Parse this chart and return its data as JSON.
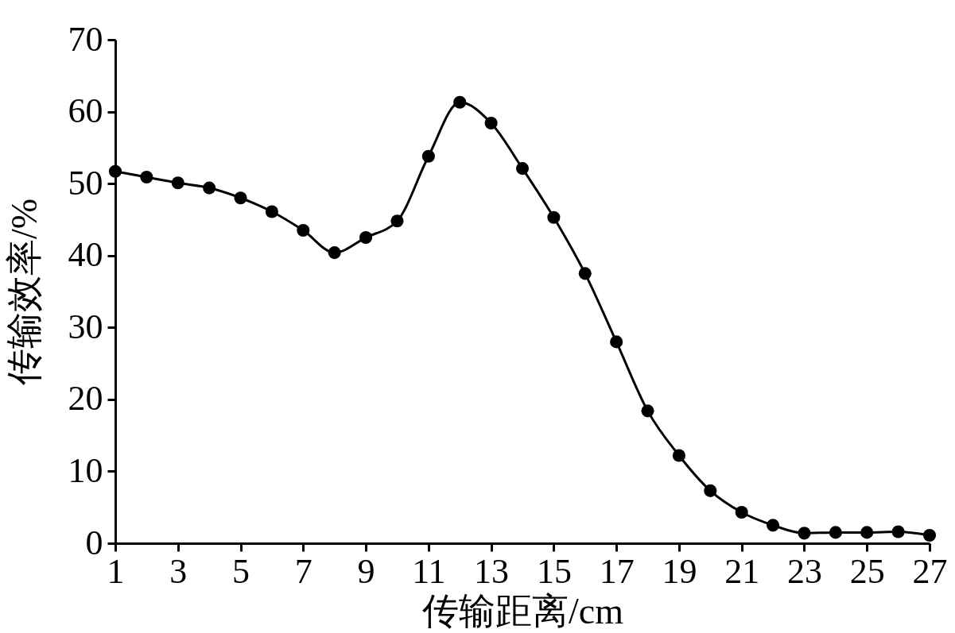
{
  "chart_data": {
    "type": "line",
    "xlabel": "传输距离/cm",
    "ylabel": "传输效率/%",
    "x": [
      1,
      2,
      3,
      4,
      5,
      6,
      7,
      8,
      9,
      10,
      11,
      12,
      13,
      14,
      15,
      16,
      17,
      18,
      19,
      20,
      21,
      22,
      23,
      24,
      25,
      26,
      27
    ],
    "series": [
      {
        "color": "#000000",
        "values": [
          51.7,
          50.9,
          50.1,
          49.4,
          48.0,
          46.1,
          43.5,
          40.4,
          42.5,
          44.8,
          53.8,
          61.3,
          58.4,
          52.1,
          45.3,
          37.5,
          28.0,
          18.4,
          12.2,
          7.3,
          4.3,
          2.5,
          1.4,
          1.5,
          1.5,
          1.6,
          1.1
        ]
      }
    ],
    "marker": "circle",
    "line_style": "solid",
    "grid": false,
    "legend": false,
    "xlim": [
      1,
      27
    ],
    "xticks": [
      1,
      3,
      5,
      7,
      9,
      11,
      13,
      15,
      17,
      19,
      21,
      23,
      25,
      27
    ],
    "ylim": [
      0,
      70
    ],
    "yticks": [
      0,
      10,
      20,
      30,
      40,
      50,
      60,
      70
    ]
  }
}
